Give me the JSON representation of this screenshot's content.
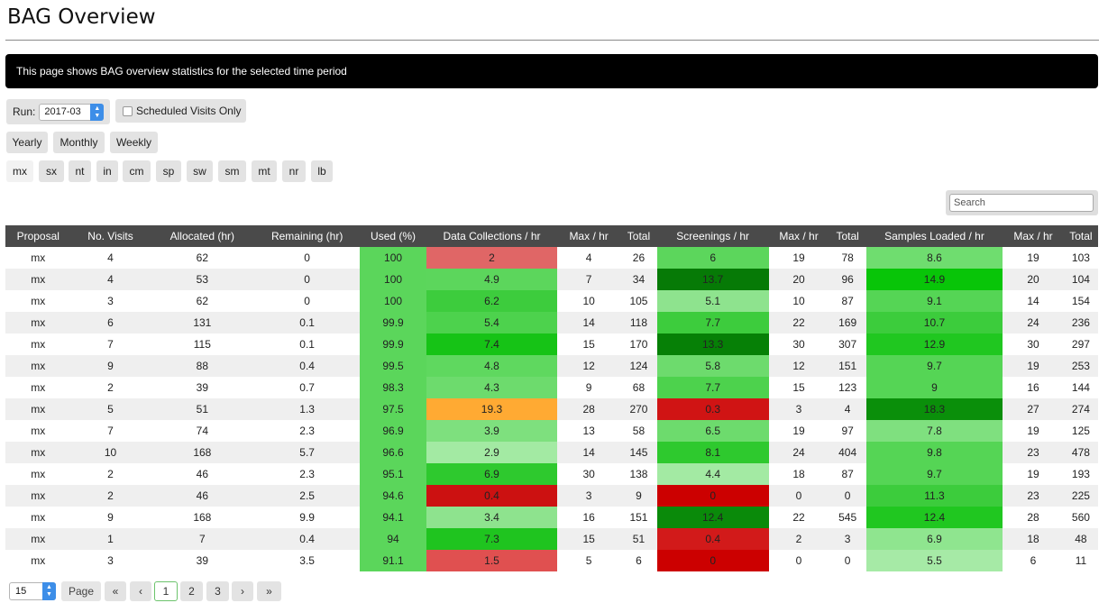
{
  "page": {
    "title": "BAG Overview",
    "message": "This page shows BAG overview statistics for the selected time period"
  },
  "filters": {
    "run_label": "Run:",
    "run_value": "2017-03",
    "scheduled_label": "Scheduled Visits Only",
    "periods": [
      "Yearly",
      "Monthly",
      "Weekly"
    ],
    "beamlines": [
      "mx",
      "sx",
      "nt",
      "in",
      "cm",
      "sp",
      "sw",
      "sm",
      "mt",
      "nr",
      "lb"
    ]
  },
  "search": {
    "placeholder": "Search"
  },
  "table": {
    "headers": [
      "Proposal",
      "No. Visits",
      "Allocated (hr)",
      "Remaining (hr)",
      "Used (%)",
      "Data Collections / hr",
      "Max / hr",
      "Total",
      "Screenings / hr",
      "Max / hr",
      "Total",
      "Samples Loaded / hr",
      "Max / hr",
      "Total"
    ],
    "rows": [
      [
        "mx",
        "4",
        "62",
        "0",
        "100",
        "2",
        "4",
        "26",
        "6",
        "19",
        "78",
        "8.6",
        "19",
        "103"
      ],
      [
        "mx",
        "4",
        "53",
        "0",
        "100",
        "4.9",
        "7",
        "34",
        "13.7",
        "20",
        "96",
        "14.9",
        "20",
        "104"
      ],
      [
        "mx",
        "3",
        "62",
        "0",
        "100",
        "6.2",
        "10",
        "105",
        "5.1",
        "10",
        "87",
        "9.1",
        "14",
        "154"
      ],
      [
        "mx",
        "6",
        "131",
        "0.1",
        "99.9",
        "5.4",
        "14",
        "118",
        "7.7",
        "22",
        "169",
        "10.7",
        "24",
        "236"
      ],
      [
        "mx",
        "7",
        "115",
        "0.1",
        "99.9",
        "7.4",
        "15",
        "170",
        "13.3",
        "30",
        "307",
        "12.9",
        "30",
        "297"
      ],
      [
        "mx",
        "9",
        "88",
        "0.4",
        "99.5",
        "4.8",
        "12",
        "124",
        "5.8",
        "12",
        "151",
        "9.7",
        "19",
        "253"
      ],
      [
        "mx",
        "2",
        "39",
        "0.7",
        "98.3",
        "4.3",
        "9",
        "68",
        "7.7",
        "15",
        "123",
        "9",
        "16",
        "144"
      ],
      [
        "mx",
        "5",
        "51",
        "1.3",
        "97.5",
        "19.3",
        "28",
        "270",
        "0.3",
        "3",
        "4",
        "18.3",
        "27",
        "274"
      ],
      [
        "mx",
        "7",
        "74",
        "2.3",
        "96.9",
        "3.9",
        "13",
        "58",
        "6.5",
        "19",
        "97",
        "7.8",
        "19",
        "125"
      ],
      [
        "mx",
        "10",
        "168",
        "5.7",
        "96.6",
        "2.9",
        "14",
        "145",
        "8.1",
        "24",
        "404",
        "9.8",
        "23",
        "478"
      ],
      [
        "mx",
        "2",
        "46",
        "2.3",
        "95.1",
        "6.9",
        "30",
        "138",
        "4.4",
        "18",
        "87",
        "9.7",
        "19",
        "193"
      ],
      [
        "mx",
        "2",
        "46",
        "2.5",
        "94.6",
        "0.4",
        "3",
        "9",
        "0",
        "0",
        "0",
        "11.3",
        "23",
        "225"
      ],
      [
        "mx",
        "9",
        "168",
        "9.9",
        "94.1",
        "3.4",
        "16",
        "151",
        "12.4",
        "22",
        "545",
        "12.4",
        "28",
        "560"
      ],
      [
        "mx",
        "1",
        "7",
        "0.4",
        "94",
        "7.3",
        "15",
        "51",
        "0.4",
        "2",
        "3",
        "6.9",
        "18",
        "48"
      ],
      [
        "mx",
        "3",
        "39",
        "3.5",
        "91.1",
        "1.5",
        "5",
        "6",
        "0",
        "0",
        "0",
        "5.5",
        "6",
        "11"
      ]
    ],
    "cell_colors": {
      "used": [
        "#5bd65b",
        "#5bd65b",
        "#5bd65b",
        "#5bd65b",
        "#5bd65b",
        "#5bd65b",
        "#5bd65b",
        "#5bd65b",
        "#5bd65b",
        "#5bd65b",
        "#5bd65b",
        "#5bd65b",
        "#5bd65b",
        "#5bd65b",
        "#5bd65b"
      ],
      "dc": [
        "#e06666",
        "#5cd65c",
        "#3dcc3d",
        "#4dd24d",
        "#16c316",
        "#5fd85f",
        "#6ddb6d",
        "#ffaa33",
        "#7ee07e",
        "#a3eaa3",
        "#2ec92e",
        "#cc1111",
        "#8ee38e",
        "#1fc41f",
        "#e05050"
      ],
      "scr": [
        "#5cd65c",
        "#067a06",
        "#8ee38e",
        "#3dcc3d",
        "#068006",
        "#6ddb6d",
        "#4dd24d",
        "#d01414",
        "#6ddb6d",
        "#2ec92e",
        "#a3eaa3",
        "#cc0000",
        "#0a8a0a",
        "#d21a1a",
        "#cc0000"
      ],
      "samp": [
        "#6fdd6f",
        "#08c508",
        "#55d555",
        "#3ccc3c",
        "#20c720",
        "#55d555",
        "#55d555",
        "#0a8f0a",
        "#7fe07f",
        "#55d555",
        "#55d555",
        "#3ccc3c",
        "#20c720",
        "#8fe58f",
        "#a6eaa6"
      ]
    }
  },
  "pagination": {
    "page_size": "15",
    "page_label": "Page",
    "first": "«",
    "prev": "‹",
    "pages": [
      "1",
      "2",
      "3"
    ],
    "next": "›",
    "last": "»"
  }
}
